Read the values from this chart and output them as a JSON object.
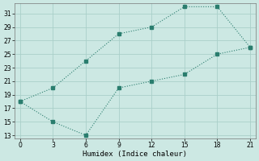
{
  "line1_x": [
    0,
    3,
    6,
    9,
    12,
    15,
    18,
    21
  ],
  "line1_y": [
    18,
    20,
    24,
    28,
    29,
    32,
    32,
    26
  ],
  "line2_x": [
    0,
    3,
    6,
    9,
    12,
    15,
    18,
    21
  ],
  "line2_y": [
    18,
    15,
    13,
    20,
    21,
    22,
    25,
    26
  ],
  "line_color": "#2a7d6e",
  "bg_color": "#cce8e3",
  "grid_color": "#aacfc9",
  "xlabel": "Humidex (Indice chaleur)",
  "xlim": [
    -0.5,
    21.5
  ],
  "ylim": [
    12.5,
    32.5
  ],
  "xticks": [
    0,
    3,
    6,
    9,
    12,
    15,
    18,
    21
  ],
  "yticks": [
    13,
    15,
    17,
    19,
    21,
    23,
    25,
    27,
    29,
    31
  ],
  "markersize": 2.5,
  "linewidth": 0.8
}
